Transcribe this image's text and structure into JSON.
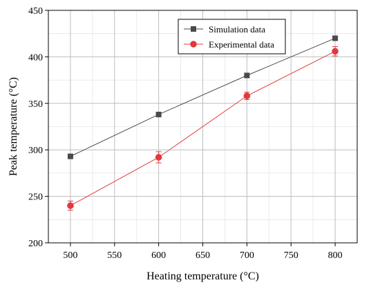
{
  "chart_data": {
    "type": "line",
    "title": "",
    "xlabel": "Heating temperature (°C)",
    "ylabel": "Peak temperature (°C)",
    "xlim": [
      475,
      825
    ],
    "ylim": [
      200,
      450
    ],
    "xticks": [
      500,
      550,
      600,
      650,
      700,
      750,
      800
    ],
    "yticks": [
      200,
      250,
      300,
      350,
      400,
      450
    ],
    "grid": true,
    "legend": "top-right",
    "series": [
      {
        "name": "Simulation data",
        "color": "#4a4a4a",
        "marker": "square",
        "x": [
          500,
          600,
          700,
          800
        ],
        "y": [
          293,
          338,
          380,
          420
        ]
      },
      {
        "name": "Experimental data",
        "color": "#e03a3e",
        "marker": "circle",
        "x": [
          500,
          600,
          700,
          800
        ],
        "y": [
          240,
          292,
          358,
          406
        ],
        "error": [
          5,
          6,
          4,
          5
        ]
      }
    ]
  }
}
